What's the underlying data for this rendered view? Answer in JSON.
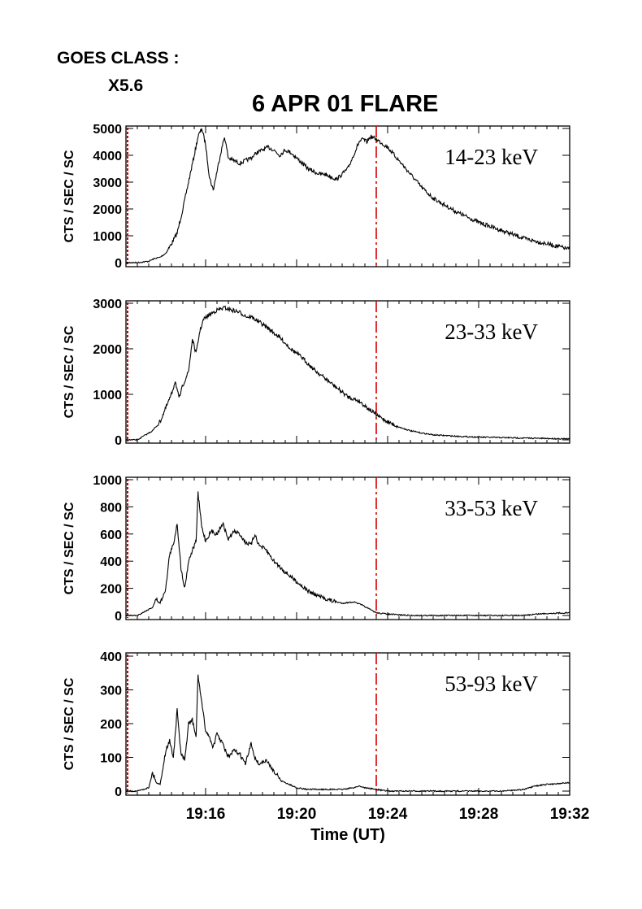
{
  "header": {
    "goes_label": "GOES CLASS :",
    "goes_value": "X5.6"
  },
  "chart_data": {
    "type": "line",
    "title": "6 APR 01 FLARE",
    "xlabel": "Time (UT)",
    "x_unit": "minutes",
    "xlim": [
      "19:12:30",
      "19:32:00"
    ],
    "xticks": [
      "19:16",
      "19:20",
      "19:24",
      "19:28",
      "19:32"
    ],
    "marker_time": "19:23:30",
    "marker_color": "#d40000",
    "line_color": "#000000",
    "ylabel": "CTS / SEC / SC",
    "panels": [
      {
        "band": "14-23 keV",
        "ylim": [
          0,
          5000
        ],
        "yticks": [
          "0",
          "1000",
          "2000",
          "3000",
          "4000",
          "5000"
        ],
        "x": [
          "19:12:30",
          "19:13:00",
          "19:13:30",
          "19:13:45",
          "19:14:00",
          "19:14:15",
          "19:14:30",
          "19:14:45",
          "19:15:00",
          "19:15:15",
          "19:15:30",
          "19:15:40",
          "19:15:50",
          "19:16:00",
          "19:16:10",
          "19:16:20",
          "19:16:30",
          "19:16:40",
          "19:16:50",
          "19:17:00",
          "19:17:15",
          "19:17:30",
          "19:17:45",
          "19:18:00",
          "19:18:15",
          "19:18:30",
          "19:18:45",
          "19:19:00",
          "19:19:15",
          "19:19:30",
          "19:19:45",
          "19:20:00",
          "19:20:15",
          "19:20:30",
          "19:20:45",
          "19:21:00",
          "19:21:15",
          "19:21:30",
          "19:21:45",
          "19:22:00",
          "19:22:15",
          "19:22:30",
          "19:22:45",
          "19:22:55",
          "19:23:05",
          "19:23:15",
          "19:23:30",
          "19:23:45",
          "19:24:00",
          "19:24:30",
          "19:25:00",
          "19:25:30",
          "19:26:00",
          "19:27:00",
          "19:28:00",
          "19:29:00",
          "19:30:00",
          "19:31:00",
          "19:32:00"
        ],
        "values": [
          0,
          0,
          50,
          150,
          200,
          350,
          700,
          1100,
          2000,
          3000,
          4000,
          4700,
          5000,
          4400,
          3200,
          2700,
          3400,
          4100,
          4700,
          3900,
          3800,
          3700,
          3800,
          3900,
          4100,
          4200,
          4300,
          4200,
          4000,
          4200,
          4100,
          3900,
          3700,
          3500,
          3400,
          3300,
          3300,
          3200,
          3100,
          3300,
          3500,
          4000,
          4500,
          4600,
          4500,
          4700,
          4600,
          4450,
          4300,
          3800,
          3300,
          2800,
          2400,
          1900,
          1500,
          1200,
          900,
          700,
          500
        ]
      },
      {
        "band": "23-33 keV",
        "ylim": [
          0,
          3000
        ],
        "yticks": [
          "0",
          "1000",
          "2000",
          "3000"
        ],
        "x": [
          "19:12:30",
          "19:13:00",
          "19:13:20",
          "19:13:40",
          "19:14:00",
          "19:14:15",
          "19:14:30",
          "19:14:40",
          "19:14:50",
          "19:15:00",
          "19:15:15",
          "19:15:25",
          "19:15:35",
          "19:15:45",
          "19:15:55",
          "19:16:10",
          "19:16:30",
          "19:16:50",
          "19:17:10",
          "19:17:30",
          "19:17:50",
          "19:18:00",
          "19:18:20",
          "19:18:45",
          "19:19:15",
          "19:19:45",
          "19:20:15",
          "19:20:45",
          "19:21:15",
          "19:21:45",
          "19:22:15",
          "19:22:45",
          "19:23:15",
          "19:23:30",
          "19:24:00",
          "19:24:30",
          "19:25:00",
          "19:25:30",
          "19:26:00",
          "19:27:00",
          "19:28:00",
          "19:29:00",
          "19:30:00",
          "19:31:00",
          "19:32:00"
        ],
        "values": [
          0,
          0,
          100,
          200,
          400,
          700,
          1000,
          1300,
          900,
          1200,
          1500,
          2200,
          1900,
          2400,
          2650,
          2750,
          2850,
          2900,
          2850,
          2800,
          2700,
          2700,
          2600,
          2450,
          2250,
          2000,
          1800,
          1550,
          1350,
          1150,
          950,
          850,
          650,
          550,
          400,
          280,
          200,
          150,
          110,
          80,
          60,
          50,
          40,
          30,
          20
        ]
      },
      {
        "band": "33-53 keV",
        "ylim": [
          0,
          1000
        ],
        "yticks": [
          "0",
          "200",
          "400",
          "600",
          "800",
          "1000"
        ],
        "x": [
          "19:12:30",
          "19:13:00",
          "19:13:20",
          "19:13:40",
          "19:13:50",
          "19:14:00",
          "19:14:15",
          "19:14:25",
          "19:14:35",
          "19:14:45",
          "19:14:55",
          "19:15:05",
          "19:15:15",
          "19:15:25",
          "19:15:35",
          "19:15:40",
          "19:15:50",
          "19:16:00",
          "19:16:15",
          "19:16:30",
          "19:16:45",
          "19:17:00",
          "19:17:15",
          "19:17:30",
          "19:17:45",
          "19:18:00",
          "19:18:10",
          "19:18:20",
          "19:18:40",
          "19:19:00",
          "19:19:30",
          "19:20:00",
          "19:20:30",
          "19:21:00",
          "19:21:30",
          "19:22:00",
          "19:22:30",
          "19:22:50",
          "19:23:10",
          "19:23:30",
          "19:24:00",
          "19:25:00",
          "19:26:00",
          "19:27:00",
          "19:28:00",
          "19:29:00",
          "19:30:00",
          "19:30:30",
          "19:31:00",
          "19:32:00"
        ],
        "values": [
          0,
          0,
          30,
          60,
          120,
          90,
          200,
          450,
          520,
          680,
          350,
          200,
          400,
          480,
          550,
          900,
          650,
          550,
          620,
          600,
          680,
          560,
          620,
          600,
          540,
          520,
          600,
          520,
          480,
          400,
          320,
          250,
          180,
          140,
          110,
          90,
          100,
          80,
          50,
          20,
          10,
          0,
          0,
          0,
          0,
          0,
          0,
          10,
          15,
          20
        ]
      },
      {
        "band": "53-93 keV",
        "ylim": [
          0,
          400
        ],
        "yticks": [
          "0",
          "100",
          "200",
          "300",
          "400"
        ],
        "x": [
          "19:12:30",
          "19:13:00",
          "19:13:30",
          "19:13:40",
          "19:13:50",
          "19:14:00",
          "19:14:15",
          "19:14:25",
          "19:14:35",
          "19:14:45",
          "19:14:55",
          "19:15:05",
          "19:15:15",
          "19:15:25",
          "19:15:35",
          "19:15:40",
          "19:15:50",
          "19:16:00",
          "19:16:10",
          "19:16:20",
          "19:16:30",
          "19:16:45",
          "19:17:00",
          "19:17:15",
          "19:17:30",
          "19:17:45",
          "19:18:00",
          "19:18:10",
          "19:18:20",
          "19:18:40",
          "19:19:00",
          "19:19:20",
          "19:19:40",
          "19:20:00",
          "19:20:30",
          "19:21:00",
          "19:21:30",
          "19:22:00",
          "19:22:30",
          "19:22:45",
          "19:23:00",
          "19:23:30",
          "19:24:00",
          "19:25:00",
          "19:26:00",
          "19:27:00",
          "19:28:00",
          "19:29:00",
          "19:30:00",
          "19:30:30",
          "19:31:00",
          "19:32:00"
        ],
        "values": [
          0,
          0,
          10,
          55,
          25,
          20,
          120,
          150,
          100,
          240,
          110,
          90,
          200,
          210,
          160,
          345,
          260,
          180,
          160,
          130,
          170,
          140,
          100,
          120,
          110,
          80,
          140,
          100,
          80,
          90,
          60,
          30,
          20,
          10,
          5,
          5,
          5,
          5,
          10,
          15,
          10,
          5,
          0,
          0,
          0,
          0,
          0,
          0,
          5,
          15,
          20,
          25
        ]
      }
    ]
  }
}
